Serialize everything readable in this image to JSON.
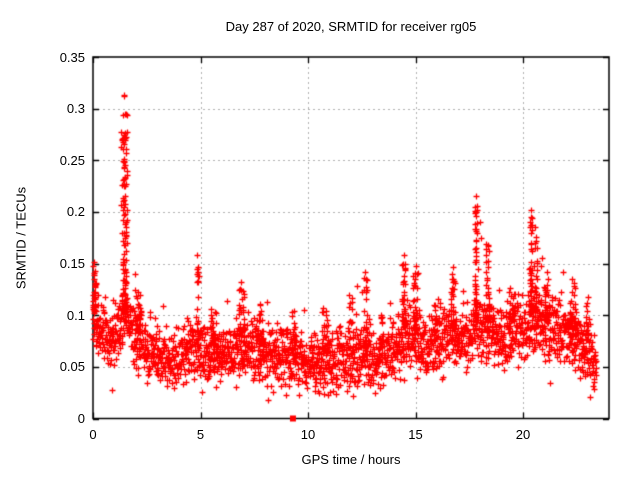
{
  "chart_data": {
    "type": "scatter",
    "title": "Day 287 of 2020, SRMTID for receiver rg05",
    "xlabel": "GPS time / hours",
    "ylabel": "SRMTID / TECUs",
    "xlim": [
      0,
      24
    ],
    "ylim": [
      0,
      0.35
    ],
    "xticks": [
      {
        "v": 0,
        "label": "0"
      },
      {
        "v": 5,
        "label": "5"
      },
      {
        "v": 10,
        "label": "10"
      },
      {
        "v": 15,
        "label": "15"
      },
      {
        "v": 20,
        "label": "20"
      }
    ],
    "yticks": [
      {
        "v": 0.0,
        "label": "0"
      },
      {
        "v": 0.05,
        "label": "0.05"
      },
      {
        "v": 0.1,
        "label": "0.1"
      },
      {
        "v": 0.15,
        "label": "0.15"
      },
      {
        "v": 0.2,
        "label": "0.2"
      },
      {
        "v": 0.25,
        "label": "0.25"
      },
      {
        "v": 0.3,
        "label": "0.3"
      },
      {
        "v": 0.35,
        "label": "0.35"
      }
    ],
    "grid": true,
    "legend": "none",
    "marker": {
      "shape": "plus",
      "color": "#ff0000",
      "size": 7
    },
    "grid_color": "#b0b0b0",
    "frame_color": "#000000",
    "series_name": "SRMTID",
    "x_data_range": [
      0,
      23.4
    ],
    "n_base_points": 2400,
    "seed": 287,
    "noise_sd": 0.014,
    "y_min_clamp": 0.018,
    "baseline_mean": [
      [
        0.0,
        0.095
      ],
      [
        0.3,
        0.09
      ],
      [
        0.7,
        0.075
      ],
      [
        1.0,
        0.08
      ],
      [
        1.5,
        0.1
      ],
      [
        2.0,
        0.075
      ],
      [
        2.5,
        0.065
      ],
      [
        3.0,
        0.06
      ],
      [
        4.0,
        0.058
      ],
      [
        4.8,
        0.07
      ],
      [
        5.2,
        0.06
      ],
      [
        6.0,
        0.062
      ],
      [
        6.8,
        0.07
      ],
      [
        7.5,
        0.065
      ],
      [
        8.0,
        0.06
      ],
      [
        8.5,
        0.062
      ],
      [
        9.0,
        0.06
      ],
      [
        9.5,
        0.055
      ],
      [
        10.0,
        0.052
      ],
      [
        10.5,
        0.055
      ],
      [
        11.0,
        0.055
      ],
      [
        11.5,
        0.057
      ],
      [
        12.0,
        0.055
      ],
      [
        12.5,
        0.06
      ],
      [
        13.0,
        0.06
      ],
      [
        13.5,
        0.058
      ],
      [
        14.0,
        0.065
      ],
      [
        14.5,
        0.08
      ],
      [
        15.0,
        0.075
      ],
      [
        15.5,
        0.07
      ],
      [
        16.0,
        0.075
      ],
      [
        16.5,
        0.08
      ],
      [
        17.0,
        0.075
      ],
      [
        17.5,
        0.08
      ],
      [
        18.0,
        0.09
      ],
      [
        18.5,
        0.085
      ],
      [
        19.0,
        0.08
      ],
      [
        19.5,
        0.085
      ],
      [
        20.0,
        0.085
      ],
      [
        20.5,
        0.095
      ],
      [
        21.0,
        0.09
      ],
      [
        21.5,
        0.085
      ],
      [
        22.0,
        0.08
      ],
      [
        22.5,
        0.075
      ],
      [
        23.0,
        0.065
      ],
      [
        23.4,
        0.055
      ]
    ],
    "spikes": [
      {
        "x": 0.05,
        "w": 0.2,
        "ymax": 0.15,
        "n": 30
      },
      {
        "x": 1.45,
        "w": 0.28,
        "ymax": 0.3,
        "n": 95
      },
      {
        "x": 2.1,
        "w": 0.25,
        "ymax": 0.125,
        "n": 30
      },
      {
        "x": 4.85,
        "w": 0.14,
        "ymax": 0.15,
        "n": 22
      },
      {
        "x": 5.6,
        "w": 0.3,
        "ymax": 0.11,
        "n": 25
      },
      {
        "x": 6.9,
        "w": 0.3,
        "ymax": 0.128,
        "n": 30
      },
      {
        "x": 7.8,
        "w": 0.25,
        "ymax": 0.115,
        "n": 25
      },
      {
        "x": 9.3,
        "w": 0.2,
        "ymax": 0.105,
        "n": 20
      },
      {
        "x": 10.8,
        "w": 0.3,
        "ymax": 0.108,
        "n": 20
      },
      {
        "x": 12.0,
        "w": 0.22,
        "ymax": 0.122,
        "n": 20
      },
      {
        "x": 12.7,
        "w": 0.25,
        "ymax": 0.138,
        "n": 30
      },
      {
        "x": 13.4,
        "w": 0.2,
        "ymax": 0.108,
        "n": 15
      },
      {
        "x": 14.45,
        "w": 0.16,
        "ymax": 0.152,
        "n": 35
      },
      {
        "x": 15.0,
        "w": 0.2,
        "ymax": 0.145,
        "n": 30
      },
      {
        "x": 16.0,
        "w": 0.25,
        "ymax": 0.118,
        "n": 20
      },
      {
        "x": 16.75,
        "w": 0.22,
        "ymax": 0.142,
        "n": 30
      },
      {
        "x": 17.8,
        "w": 0.13,
        "ymax": 0.21,
        "n": 48
      },
      {
        "x": 18.35,
        "w": 0.2,
        "ymax": 0.172,
        "n": 30
      },
      {
        "x": 19.5,
        "w": 0.3,
        "ymax": 0.128,
        "n": 25
      },
      {
        "x": 20.35,
        "w": 0.13,
        "ymax": 0.198,
        "n": 42
      },
      {
        "x": 20.6,
        "w": 0.16,
        "ymax": 0.18,
        "n": 25
      },
      {
        "x": 21.1,
        "w": 0.25,
        "ymax": 0.14,
        "n": 25
      },
      {
        "x": 22.3,
        "w": 0.3,
        "ymax": 0.132,
        "n": 30
      },
      {
        "x": 23.0,
        "w": 0.2,
        "ymax": 0.118,
        "n": 15
      }
    ],
    "peak_points": [
      [
        1.43,
        0.313
      ],
      [
        1.46,
        0.312
      ],
      [
        1.44,
        0.274
      ],
      [
        1.43,
        0.251
      ],
      [
        1.45,
        0.249
      ],
      [
        1.42,
        0.248
      ],
      [
        1.44,
        0.243
      ],
      [
        1.43,
        0.232
      ],
      [
        1.46,
        0.225
      ],
      [
        1.5,
        0.215
      ],
      [
        1.43,
        0.212
      ],
      [
        1.47,
        0.208
      ],
      [
        1.45,
        0.205
      ],
      [
        1.48,
        0.198
      ],
      [
        1.52,
        0.19
      ],
      [
        1.55,
        0.185
      ],
      [
        1.42,
        0.18
      ],
      [
        1.47,
        0.175
      ],
      [
        1.49,
        0.168
      ],
      [
        1.53,
        0.162
      ],
      [
        0.05,
        0.152
      ],
      [
        0.1,
        0.143
      ],
      [
        0.05,
        0.135
      ],
      [
        0.15,
        0.13
      ],
      [
        4.85,
        0.158
      ],
      [
        4.82,
        0.145
      ],
      [
        4.88,
        0.132
      ],
      [
        6.9,
        0.132
      ],
      [
        6.85,
        0.125
      ],
      [
        12.65,
        0.142
      ],
      [
        12.7,
        0.135
      ],
      [
        12.3,
        0.128
      ],
      [
        14.45,
        0.158
      ],
      [
        14.42,
        0.15
      ],
      [
        14.5,
        0.145
      ],
      [
        14.48,
        0.138
      ],
      [
        15.0,
        0.148
      ],
      [
        15.05,
        0.14
      ],
      [
        16.75,
        0.147
      ],
      [
        16.7,
        0.14
      ],
      [
        16.8,
        0.133
      ],
      [
        17.8,
        0.215
      ],
      [
        17.78,
        0.205
      ],
      [
        17.82,
        0.196
      ],
      [
        17.79,
        0.188
      ],
      [
        17.85,
        0.18
      ],
      [
        17.8,
        0.172
      ],
      [
        17.83,
        0.165
      ],
      [
        18.0,
        0.19
      ],
      [
        18.05,
        0.175
      ],
      [
        18.35,
        0.168
      ],
      [
        18.3,
        0.158
      ],
      [
        20.35,
        0.202
      ],
      [
        20.33,
        0.19
      ],
      [
        20.38,
        0.18
      ],
      [
        20.36,
        0.17
      ],
      [
        20.4,
        0.162
      ],
      [
        20.55,
        0.185
      ],
      [
        20.6,
        0.172
      ],
      [
        20.9,
        0.155
      ],
      [
        20.85,
        0.148
      ],
      [
        21.1,
        0.142
      ],
      [
        22.3,
        0.135
      ],
      [
        22.35,
        0.128
      ],
      [
        23.3,
        0.035
      ],
      [
        23.35,
        0.045
      ],
      [
        10.5,
        0.025
      ],
      [
        0.9,
        0.028
      ],
      [
        12.1,
        0.022
      ],
      [
        22.9,
        0.045
      ]
    ],
    "special_points": [
      {
        "x": 9.3,
        "y": 0,
        "shape": "filled-square",
        "color": "#ff0000",
        "size": 6,
        "note": "filled square marker sitting on x-axis"
      }
    ]
  }
}
